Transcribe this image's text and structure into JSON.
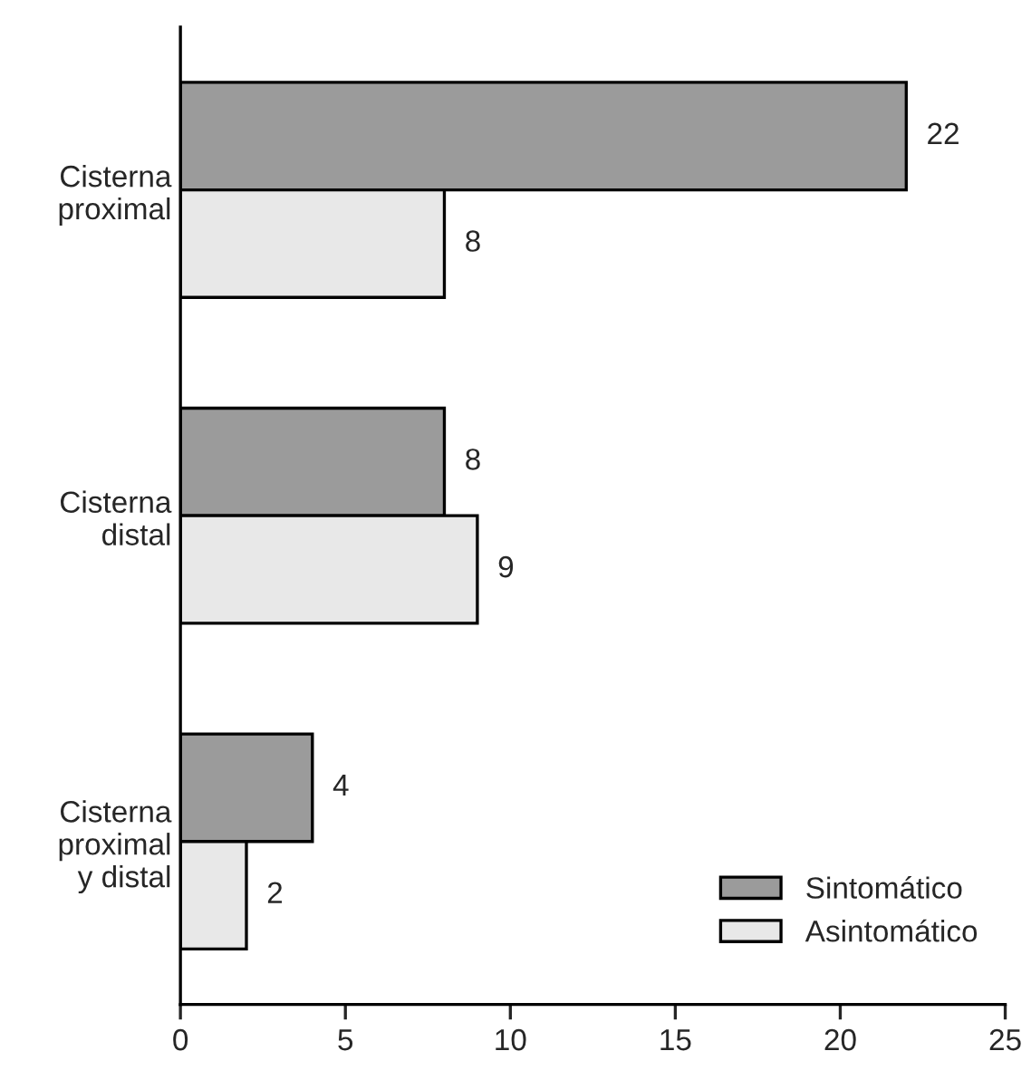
{
  "chart_data": {
    "type": "bar",
    "orientation": "horizontal",
    "categories": [
      "Cisterna\nproximal",
      "Cisterna\ndistal",
      "Cisterna\nproximal\ny distal"
    ],
    "series": [
      {
        "name": "Sintomático",
        "color": "#9b9b9b",
        "values": [
          22,
          8,
          4
        ]
      },
      {
        "name": "Asintomático",
        "color": "#e8e8e8",
        "values": [
          8,
          9,
          2
        ]
      }
    ],
    "xlim": [
      0,
      25
    ],
    "xticks": [
      0,
      5,
      10,
      15,
      20,
      25
    ],
    "data_labels": true,
    "legend": "bottom right",
    "grid": false
  }
}
